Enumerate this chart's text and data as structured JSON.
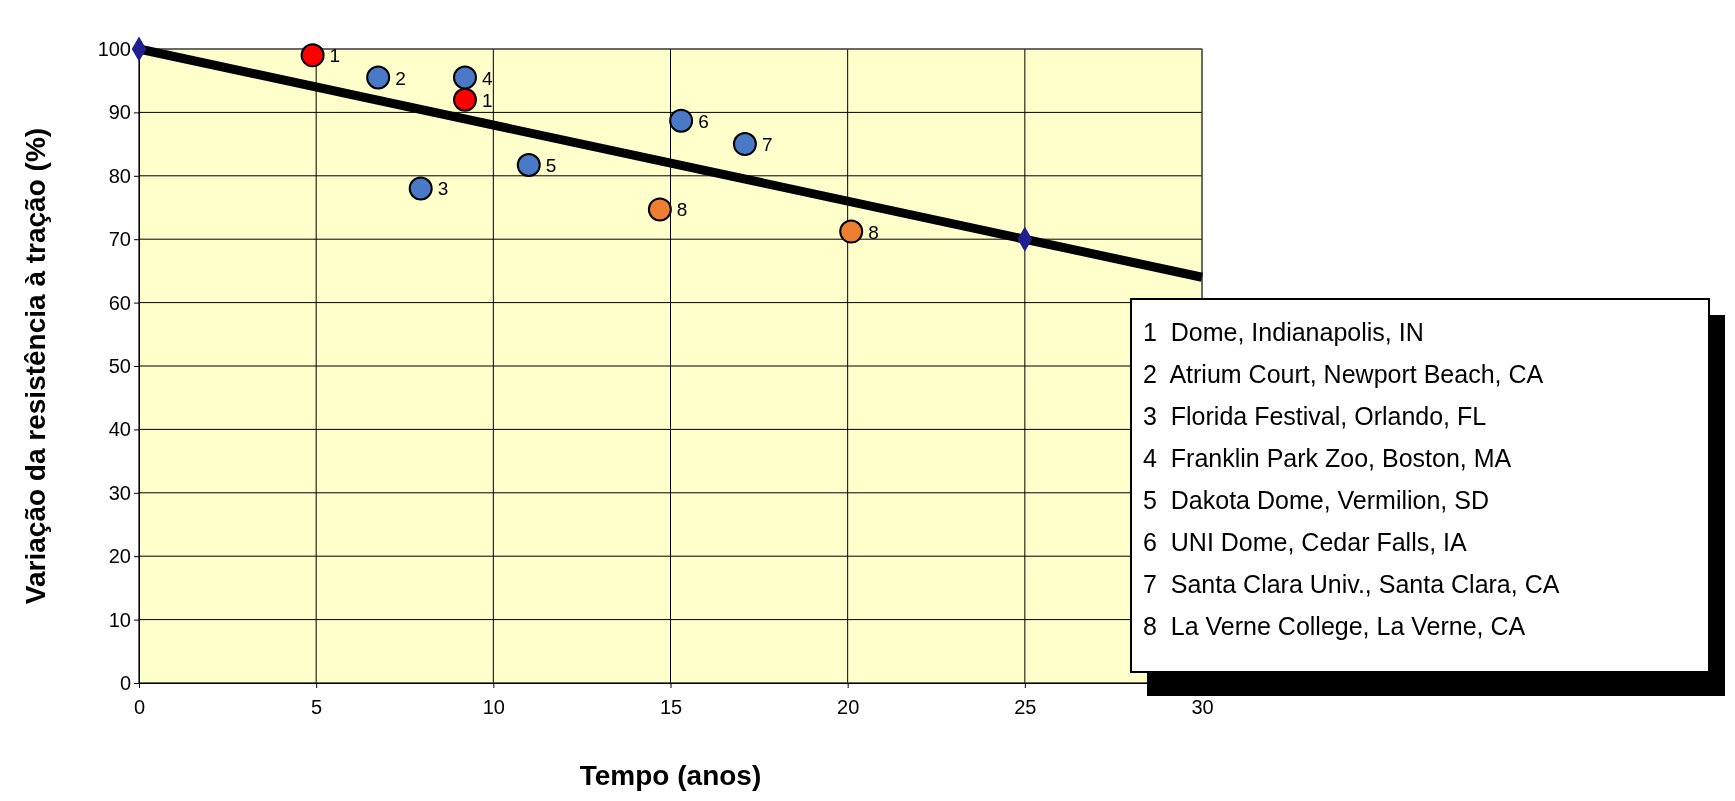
{
  "chart_data": {
    "type": "scatter",
    "xlabel": "Tempo (anos)",
    "ylabel": "Variação da resistência à tração (%)",
    "xlim": [
      0,
      30
    ],
    "ylim": [
      0,
      100
    ],
    "xticks": [
      0,
      5,
      10,
      15,
      20,
      25,
      30
    ],
    "yticks": [
      0,
      10,
      20,
      30,
      40,
      50,
      60,
      70,
      80,
      90,
      100
    ],
    "grid": true,
    "marker": "circle",
    "series": [
      {
        "type": "line",
        "color": "#000000",
        "x": [
          0,
          30
        ],
        "values": [
          100,
          64
        ],
        "marker": "none"
      },
      {
        "type": "scatter",
        "color": "#1f1f8f",
        "x": [
          0,
          25
        ],
        "values": [
          100,
          70
        ],
        "marker": "diamond"
      },
      {
        "color": "#ff0000",
        "x": [
          4.9,
          9.2
        ],
        "values": [
          99,
          92
        ]
      },
      {
        "color": "#4a7ac7",
        "x": [
          6.75,
          7.95,
          9.2,
          11.0,
          15.3,
          17.1
        ],
        "values": [
          95.5,
          78,
          95.5,
          81.7,
          88.7,
          85
        ]
      },
      {
        "color": "#ed7d31",
        "x": [
          14.7,
          20.1
        ],
        "values": [
          74.7,
          71.2
        ]
      }
    ],
    "annotations": [
      {
        "text": "1",
        "x": 4.9,
        "y": 99
      },
      {
        "text": "1",
        "x": 9.2,
        "y": 92
      },
      {
        "text": "2",
        "x": 6.75,
        "y": 95.5
      },
      {
        "text": "3",
        "x": 7.95,
        "y": 78
      },
      {
        "text": "4",
        "x": 9.2,
        "y": 95.5
      },
      {
        "text": "5",
        "x": 11.0,
        "y": 81.7
      },
      {
        "text": "6",
        "x": 15.3,
        "y": 88.7
      },
      {
        "text": "7",
        "x": 17.1,
        "y": 85
      },
      {
        "text": "8",
        "x": 14.7,
        "y": 74.7
      },
      {
        "text": "8",
        "x": 20.1,
        "y": 71.2
      },
      "1  Dome, Indianapolis, IN",
      "2  Atrium Court, Newport Beach, CA",
      "3  Florida Festival, Orlando, FL",
      "4  Franklin Park Zoo, Boston, MA",
      "5  Dakota Dome, Vermilion, SD",
      "6  UNI Dome, Cedar Falls, IA",
      "7  Santa Clara Univ., Santa Clara, CA",
      "8  La Verne College, La Verne, CA"
    ]
  }
}
